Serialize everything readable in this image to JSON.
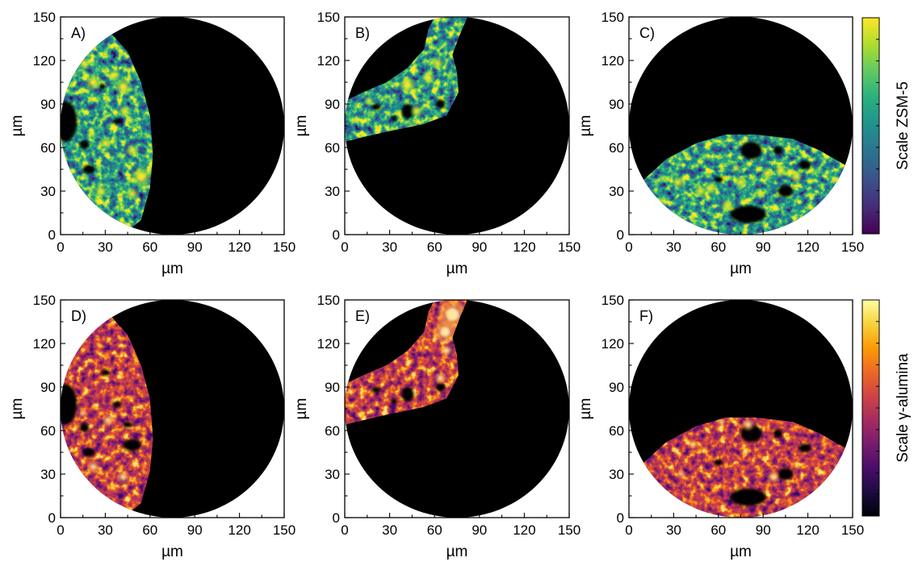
{
  "chart_data": [
    {
      "type": "heatmap",
      "panel": "A)",
      "colormap": "viridis",
      "xlabel": "µm",
      "ylabel": "µm",
      "xlim": [
        0,
        150
      ],
      "ylim": [
        0,
        150
      ],
      "xticks": [
        "0",
        "30",
        "60",
        "90",
        "120",
        "150"
      ],
      "yticks": [
        "0",
        "30",
        "60",
        "90",
        "120",
        "150"
      ],
      "field_of_view": {
        "center_um": [
          75,
          75
        ],
        "radius_um": 75
      },
      "sample_region_outline_um": [
        [
          31,
          142
        ],
        [
          45,
          126
        ],
        [
          54,
          105
        ],
        [
          60,
          82
        ],
        [
          62,
          55
        ],
        [
          60,
          32
        ],
        [
          54,
          10
        ],
        [
          42,
          0
        ],
        [
          0,
          0
        ],
        [
          0,
          150
        ],
        [
          28,
          150
        ]
      ],
      "pores_um": [
        [
          3,
          78,
          8,
          14
        ],
        [
          19,
          45,
          4,
          3
        ],
        [
          16,
          62,
          3,
          3
        ],
        [
          38,
          78,
          3,
          2
        ],
        [
          28,
          102,
          2,
          2
        ]
      ],
      "hotspots_um": [
        [
          54,
          40,
          5
        ],
        [
          22,
          105,
          4
        ],
        [
          42,
          102,
          4
        ],
        [
          43,
          85,
          3
        ],
        [
          30,
          63,
          3
        ],
        [
          36,
          110,
          3
        ],
        [
          16,
          118,
          3
        ],
        [
          48,
          58,
          3
        ],
        [
          27,
          30,
          3
        ],
        [
          48,
          28,
          3
        ]
      ]
    },
    {
      "type": "heatmap",
      "panel": "B)",
      "colormap": "viridis",
      "xlabel": "µm",
      "ylabel": "µm",
      "xlim": [
        0,
        150
      ],
      "ylim": [
        0,
        150
      ],
      "xticks": [
        "0",
        "30",
        "60",
        "90",
        "120",
        "150"
      ],
      "yticks": [
        "0",
        "30",
        "60",
        "90",
        "120",
        "150"
      ],
      "field_of_view": {
        "center_um": [
          75,
          75
        ],
        "radius_um": 75
      },
      "sample_region_outline_um": [
        [
          0,
          92
        ],
        [
          12,
          98
        ],
        [
          28,
          105
        ],
        [
          42,
          115
        ],
        [
          53,
          128
        ],
        [
          56,
          142
        ],
        [
          60,
          150
        ],
        [
          82,
          150
        ],
        [
          77,
          138
        ],
        [
          72,
          124
        ],
        [
          75,
          112
        ],
        [
          76,
          98
        ],
        [
          68,
          82
        ],
        [
          52,
          76
        ],
        [
          38,
          73
        ],
        [
          20,
          69
        ],
        [
          0,
          64
        ]
      ],
      "pores_um": [
        [
          42,
          85,
          4,
          5
        ],
        [
          64,
          90,
          3,
          3
        ],
        [
          21,
          88,
          3,
          2
        ],
        [
          33,
          80,
          2,
          2
        ]
      ],
      "hotspots_um": [
        [
          42,
          103,
          4
        ],
        [
          48,
          85,
          3
        ],
        [
          62,
          118,
          3
        ],
        [
          45,
          73,
          3
        ],
        [
          16,
          92,
          2
        ],
        [
          56,
          108,
          3
        ]
      ]
    },
    {
      "type": "heatmap",
      "panel": "C)",
      "colormap": "viridis",
      "xlabel": "µm",
      "ylabel": "µm",
      "xlim": [
        0,
        150
      ],
      "ylim": [
        0,
        150
      ],
      "xticks": [
        "0",
        "30",
        "60",
        "90",
        "120",
        "150"
      ],
      "yticks": [
        "0",
        "30",
        "60",
        "90",
        "120",
        "150"
      ],
      "field_of_view": {
        "center_um": [
          75,
          75
        ],
        "radius_um": 75
      },
      "sample_region_outline_um": [
        [
          10,
          38
        ],
        [
          25,
          52
        ],
        [
          45,
          63
        ],
        [
          65,
          69
        ],
        [
          85,
          69
        ],
        [
          110,
          66
        ],
        [
          128,
          58
        ],
        [
          145,
          48
        ],
        [
          150,
          40
        ],
        [
          150,
          0
        ],
        [
          0,
          0
        ],
        [
          0,
          30
        ]
      ],
      "pores_um": [
        [
          82,
          58,
          7,
          6
        ],
        [
          100,
          58,
          3,
          3
        ],
        [
          118,
          48,
          4,
          3
        ],
        [
          105,
          30,
          5,
          4
        ],
        [
          80,
          14,
          12,
          6
        ],
        [
          60,
          38,
          3,
          2
        ]
      ],
      "hotspots_um": [
        [
          48,
          30,
          3
        ],
        [
          55,
          32,
          3
        ],
        [
          75,
          36,
          3
        ],
        [
          93,
          42,
          3
        ],
        [
          112,
          40,
          3
        ],
        [
          33,
          36,
          3
        ],
        [
          66,
          20,
          3
        ],
        [
          88,
          28,
          2
        ],
        [
          102,
          44,
          3
        ],
        [
          72,
          46,
          2
        ]
      ]
    },
    {
      "type": "heatmap",
      "panel": "D)",
      "colormap": "inferno",
      "xlabel": "µm",
      "ylabel": "µm",
      "xlim": [
        0,
        150
      ],
      "ylim": [
        0,
        150
      ],
      "xticks": [
        "0",
        "30",
        "60",
        "90",
        "120",
        "150"
      ],
      "yticks": [
        "0",
        "30",
        "60",
        "90",
        "120",
        "150"
      ],
      "field_of_view": {
        "center_um": [
          75,
          75
        ],
        "radius_um": 75
      },
      "sample_region_outline_um": [
        [
          31,
          142
        ],
        [
          45,
          126
        ],
        [
          54,
          105
        ],
        [
          60,
          82
        ],
        [
          62,
          55
        ],
        [
          60,
          32
        ],
        [
          54,
          10
        ],
        [
          42,
          0
        ],
        [
          0,
          0
        ],
        [
          0,
          150
        ],
        [
          28,
          150
        ]
      ],
      "pores_um": [
        [
          3,
          78,
          8,
          14
        ],
        [
          19,
          45,
          4,
          3
        ],
        [
          16,
          62,
          3,
          3
        ],
        [
          38,
          78,
          3,
          2
        ],
        [
          48,
          50,
          6,
          4
        ],
        [
          45,
          64,
          3,
          2
        ],
        [
          30,
          100,
          3,
          2
        ]
      ],
      "hotspots_um": [
        [
          32,
          67,
          3
        ],
        [
          15,
          72,
          2
        ],
        [
          22,
          35,
          3
        ],
        [
          42,
          28,
          3
        ]
      ]
    },
    {
      "type": "heatmap",
      "panel": "E)",
      "colormap": "inferno",
      "xlabel": "µm",
      "ylabel": "µm",
      "xlim": [
        0,
        150
      ],
      "ylim": [
        0,
        150
      ],
      "xticks": [
        "0",
        "30",
        "60",
        "90",
        "120",
        "150"
      ],
      "yticks": [
        "0",
        "30",
        "60",
        "90",
        "120",
        "150"
      ],
      "field_of_view": {
        "center_um": [
          75,
          75
        ],
        "radius_um": 75
      },
      "sample_region_outline_um": [
        [
          0,
          92
        ],
        [
          12,
          98
        ],
        [
          28,
          105
        ],
        [
          42,
          115
        ],
        [
          53,
          128
        ],
        [
          56,
          142
        ],
        [
          60,
          150
        ],
        [
          82,
          150
        ],
        [
          77,
          138
        ],
        [
          72,
          124
        ],
        [
          75,
          112
        ],
        [
          76,
          98
        ],
        [
          68,
          82
        ],
        [
          52,
          76
        ],
        [
          38,
          73
        ],
        [
          20,
          69
        ],
        [
          0,
          64
        ]
      ],
      "pores_um": [
        [
          42,
          85,
          4,
          5
        ],
        [
          64,
          90,
          3,
          3
        ],
        [
          21,
          88,
          3,
          2
        ],
        [
          33,
          80,
          2,
          2
        ]
      ],
      "hotspots_um": [
        [
          72,
          140,
          8
        ],
        [
          67,
          128,
          6
        ],
        [
          64,
          96,
          3
        ],
        [
          68,
          115,
          3
        ]
      ]
    },
    {
      "type": "heatmap",
      "panel": "F)",
      "colormap": "inferno",
      "xlabel": "µm",
      "ylabel": "µm",
      "xlim": [
        0,
        150
      ],
      "ylim": [
        0,
        150
      ],
      "xticks": [
        "0",
        "30",
        "60",
        "90",
        "120",
        "150"
      ],
      "yticks": [
        "0",
        "30",
        "60",
        "90",
        "120",
        "150"
      ],
      "field_of_view": {
        "center_um": [
          75,
          75
        ],
        "radius_um": 75
      },
      "sample_region_outline_um": [
        [
          10,
          38
        ],
        [
          25,
          52
        ],
        [
          45,
          63
        ],
        [
          65,
          69
        ],
        [
          85,
          69
        ],
        [
          110,
          66
        ],
        [
          128,
          58
        ],
        [
          145,
          48
        ],
        [
          150,
          40
        ],
        [
          150,
          0
        ],
        [
          0,
          0
        ],
        [
          0,
          30
        ]
      ],
      "pores_um": [
        [
          82,
          58,
          7,
          6
        ],
        [
          100,
          58,
          3,
          3
        ],
        [
          118,
          48,
          4,
          3
        ],
        [
          105,
          30,
          5,
          4
        ],
        [
          80,
          14,
          12,
          6
        ],
        [
          60,
          38,
          3,
          2
        ]
      ],
      "hotspots_um": [
        [
          80,
          64,
          3
        ],
        [
          62,
          66,
          2
        ],
        [
          43,
          50,
          2
        ],
        [
          97,
          28,
          3
        ],
        [
          35,
          30,
          2
        ]
      ]
    }
  ],
  "colorbars": [
    {
      "title": "Scale ZSM-5",
      "colormap": "viridis"
    },
    {
      "title": "Scale γ-alumina",
      "colormap": "inferno"
    }
  ],
  "colors": {
    "viridis": [
      "#440154",
      "#472b7a",
      "#3b528b",
      "#2c728e",
      "#21918c",
      "#28ae80",
      "#5ec962",
      "#addc30",
      "#fde725"
    ],
    "inferno": [
      "#000004",
      "#1b0c41",
      "#4a0c6b",
      "#781c6d",
      "#a52c60",
      "#cf4446",
      "#ed6925",
      "#fb9b06",
      "#f7d13d",
      "#fcffa4"
    ],
    "background": "#000000"
  }
}
